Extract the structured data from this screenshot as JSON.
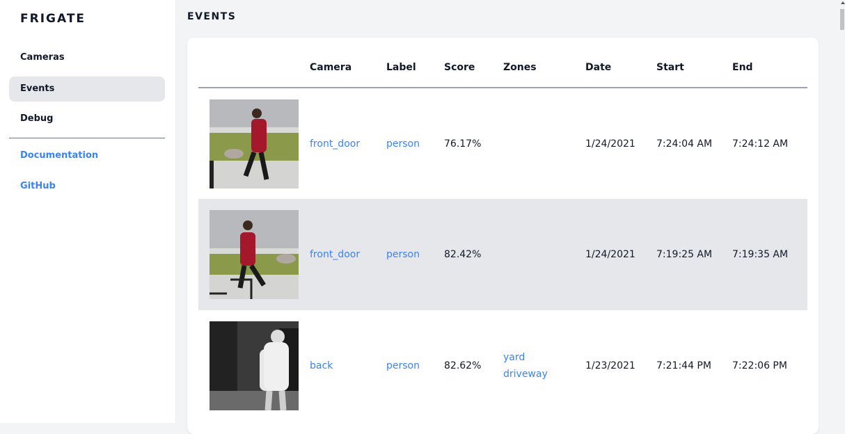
{
  "sidebar": {
    "brand": "FRIGATE",
    "items": [
      {
        "label": "Cameras"
      },
      {
        "label": "Events",
        "active": true
      },
      {
        "label": "Debug"
      }
    ],
    "links": [
      {
        "label": "Documentation"
      },
      {
        "label": "GitHub"
      }
    ]
  },
  "main": {
    "title": "EVENTS",
    "columns": [
      "",
      "Camera",
      "Label",
      "Score",
      "Zones",
      "Date",
      "Start",
      "End"
    ],
    "rows": [
      {
        "thumbnail": "person walking dog",
        "camera": "front_door",
        "label": "person",
        "score": "76.17%",
        "zones": [
          "",
          ""
        ],
        "date": "1/24/2021",
        "start": "7:24:04 AM",
        "end": "7:24:12 AM"
      },
      {
        "thumbnail": "person walking dog",
        "camera": "front_door",
        "label": "person",
        "score": "82.42%",
        "zones": [
          "",
          ""
        ],
        "date": "1/24/2021",
        "start": "7:19:25 AM",
        "end": "7:19:35 AM"
      },
      {
        "thumbnail": "person night camera",
        "camera": "back",
        "label": "person",
        "score": "82.62%",
        "zones": [
          "yard",
          "driveway"
        ],
        "date": "1/23/2021",
        "start": "7:21:44 PM",
        "end": "7:22:06 PM"
      }
    ]
  },
  "colors": {
    "accent": "#3b82f6",
    "active_bg": "#e5e7eb"
  }
}
